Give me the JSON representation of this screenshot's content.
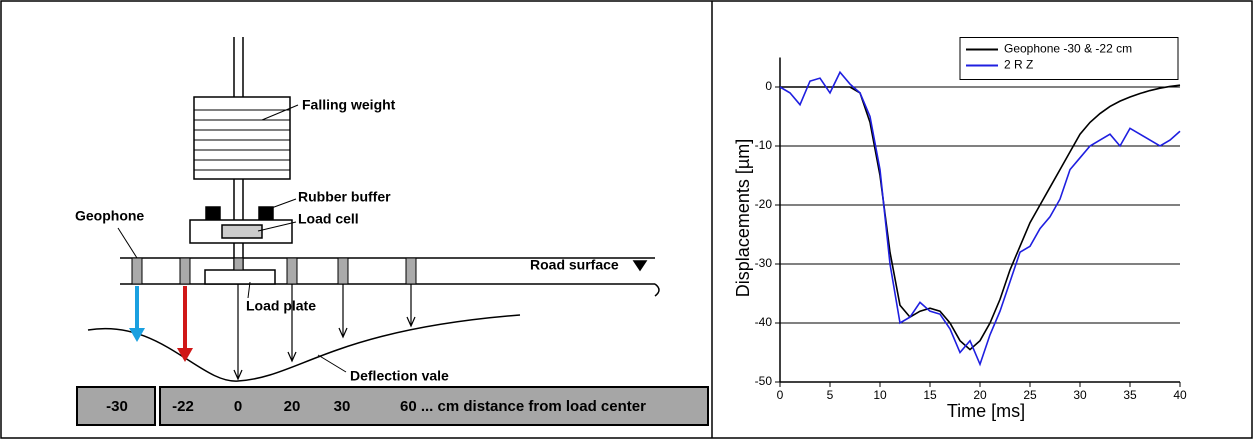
{
  "diagram": {
    "labels": {
      "falling_weight": "Falling weight",
      "rubber_buffer": "Rubber buffer",
      "load_cell": "Load cell",
      "geophone": "Geophone",
      "road_surface": "Road surface",
      "load_plate": "Load plate",
      "deflection": "Deflection vale"
    },
    "distance_bar": [
      "-30",
      "-22",
      "0",
      "20",
      "30",
      "60 ... cm distance from load center"
    ]
  },
  "chart_data": {
    "type": "line",
    "xlabel": "Time [ms]",
    "ylabel": "Displacements [µm]",
    "x": [
      0,
      1,
      2,
      3,
      4,
      5,
      6,
      7,
      8,
      9,
      10,
      11,
      12,
      13,
      14,
      15,
      16,
      17,
      18,
      19,
      20,
      21,
      22,
      23,
      24,
      25,
      26,
      27,
      28,
      29,
      30,
      31,
      32,
      33,
      34,
      35,
      36,
      37,
      38,
      39,
      40
    ],
    "series": [
      {
        "name": "Geophone -30 & -22 cm",
        "color": "#000000",
        "values": [
          0,
          0,
          0,
          0,
          0,
          0,
          0,
          0,
          -1,
          -6,
          -15,
          -28,
          -37,
          -39,
          -38,
          -37.5,
          -38,
          -40,
          -43,
          -44.5,
          -43,
          -40,
          -36,
          -31,
          -27,
          -23,
          -20,
          -17,
          -14,
          -11,
          -8,
          -6,
          -4.5,
          -3.3,
          -2.4,
          -1.7,
          -1.1,
          -0.6,
          -0.2,
          0.1,
          0.3
        ]
      },
      {
        "name": "2 R Z",
        "color": "#1f1fe0",
        "values": [
          0,
          -1,
          -3,
          1,
          1.5,
          -1,
          2.5,
          0.5,
          -1,
          -5,
          -14,
          -30,
          -40,
          -39,
          -36.5,
          -38,
          -38.5,
          -41,
          -45,
          -43,
          -47,
          -42,
          -38,
          -33,
          -28,
          -27,
          -24,
          -22,
          -19,
          -14,
          -12,
          -10,
          -9,
          -8,
          -10,
          -7,
          -8,
          -9,
          -10,
          -9,
          -7.5
        ]
      }
    ],
    "xlim": [
      0,
      40
    ],
    "xticks": [
      0,
      5,
      10,
      15,
      20,
      25,
      30,
      35,
      40
    ],
    "ylim": [
      -50,
      5
    ],
    "yticks": [
      -50,
      -40,
      -30,
      -20,
      -10,
      0
    ],
    "grid": true,
    "legend": "top-right"
  }
}
